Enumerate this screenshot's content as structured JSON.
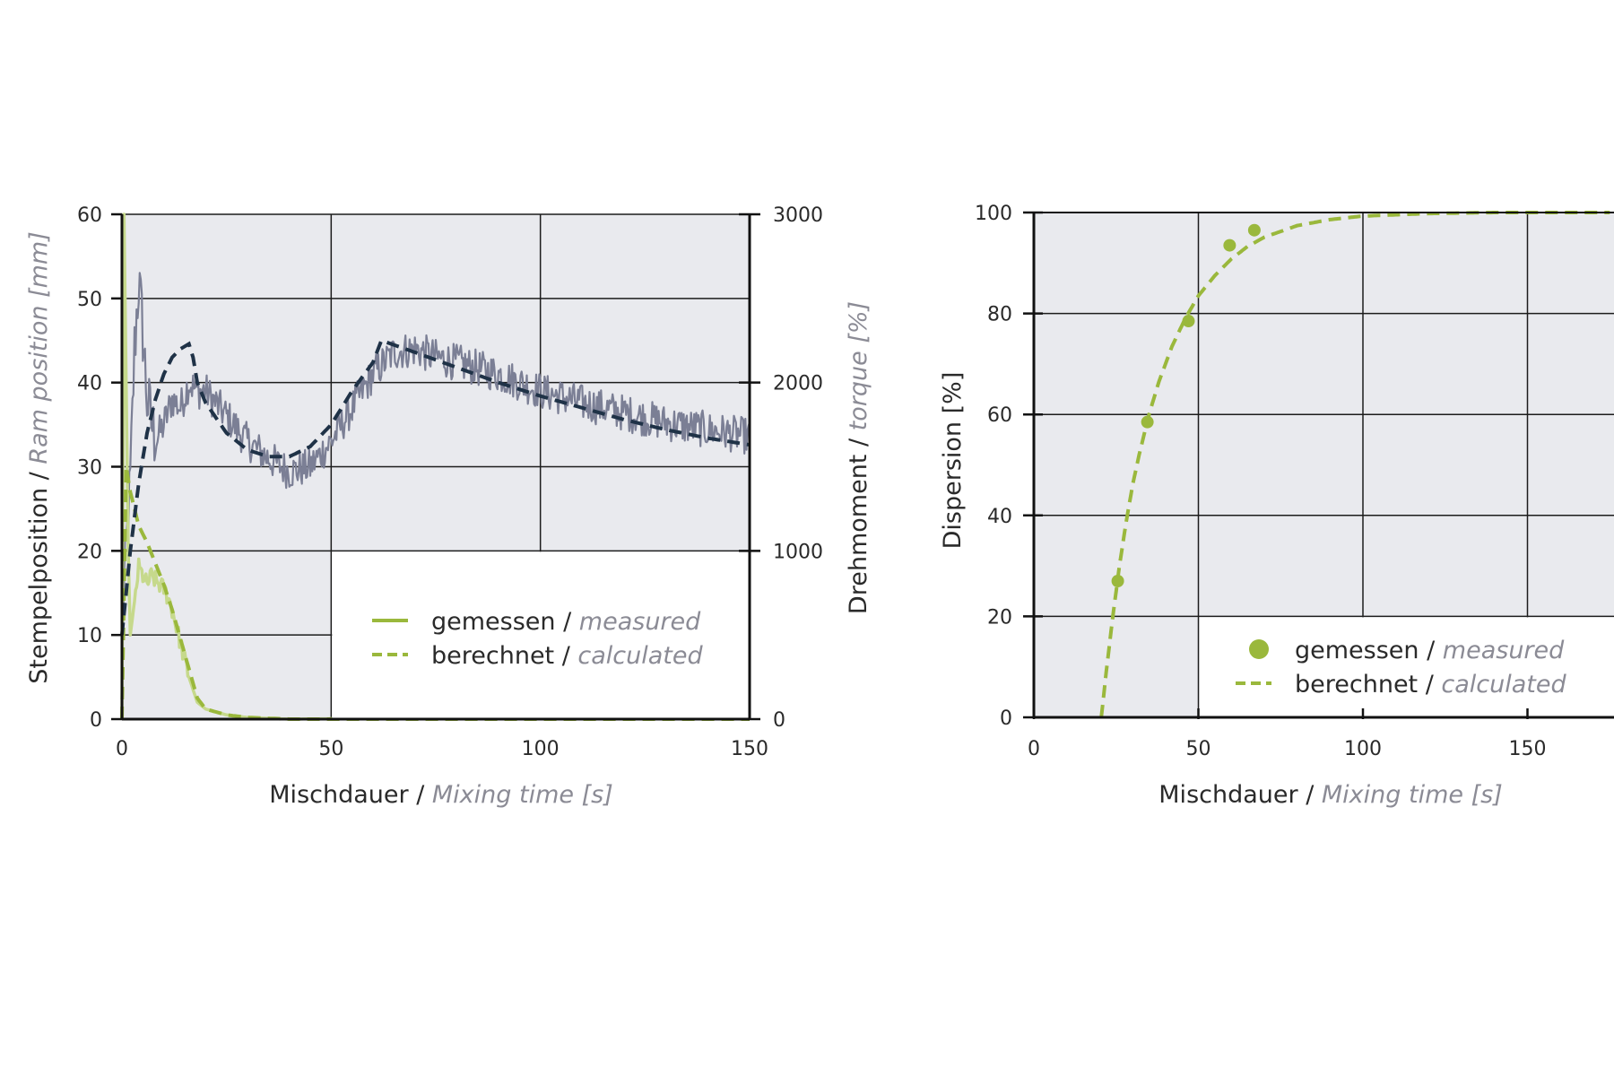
{
  "colors": {
    "plot_bg": "#e9eaee",
    "grid": "#1c1c1c",
    "torque_measured": "#7b7f95",
    "torque_calculated": "#1f3247",
    "ram_measured": "#c6d98c",
    "ram_calculated": "#9ab83c",
    "dispersion": "#9ab83c",
    "axis_label_sub": "#8b8b95"
  },
  "chart_data": [
    {
      "type": "line",
      "xlabel_main": "Mischdauer",
      "xlabel_sub": "Mixing time",
      "xlabel_unit": "[s]",
      "ylabel_left_main": "Stempelposition",
      "ylabel_left_sub": "Ram position",
      "ylabel_left_unit": "[mm]",
      "ylabel_right_main": "Drehmoment",
      "ylabel_right_sub": "torque",
      "ylabel_right_unit": "[%]",
      "xlim": [
        0,
        150
      ],
      "ylim_left": [
        0,
        60
      ],
      "ylim_right": [
        0,
        3000
      ],
      "xticks": [
        "0",
        "50",
        "100",
        "150"
      ],
      "yticks_left": [
        "0",
        "10",
        "20",
        "30",
        "40",
        "50",
        "60"
      ],
      "yticks_right": [
        "0",
        "1000",
        "2000",
        "3000"
      ],
      "grid": true,
      "legend": [
        {
          "main": "gemessen",
          "sub": "measured",
          "style": "solid"
        },
        {
          "main": "berechnet",
          "sub": "calculated",
          "style": "dashed"
        }
      ],
      "legend_position": "lower-right",
      "series": [
        {
          "axis": "left",
          "kind": "measured",
          "x": [
            0,
            0.5,
            1,
            1.5,
            2,
            3,
            4,
            5,
            6,
            7,
            8,
            9,
            10,
            11,
            12,
            13,
            14,
            16,
            18,
            20,
            25,
            30,
            40,
            60,
            80,
            100,
            120,
            150
          ],
          "y": [
            0,
            60,
            40,
            20,
            10,
            14,
            18,
            17,
            16,
            17,
            16.5,
            16,
            15.5,
            14.5,
            13,
            11,
            9,
            5,
            2,
            1.2,
            0.5,
            0.2,
            0,
            0.1,
            0.2,
            0.1,
            0.2,
            0
          ]
        },
        {
          "axis": "left",
          "kind": "calculated",
          "x": [
            0,
            1,
            2,
            4,
            6,
            8,
            10,
            12,
            14,
            16,
            18,
            20,
            25,
            30,
            40,
            60,
            100,
            150
          ],
          "y": [
            0,
            30,
            27,
            23,
            21,
            18.5,
            16,
            13,
            9.5,
            6,
            2.5,
            1.2,
            0.5,
            0.2,
            0,
            0,
            0,
            0
          ]
        },
        {
          "axis": "right",
          "kind": "measured",
          "x": [
            0,
            1,
            2,
            3,
            4,
            5,
            6,
            8,
            10,
            12,
            14,
            16,
            18,
            20,
            25,
            30,
            35,
            40,
            45,
            50,
            55,
            60,
            65,
            70,
            75,
            80,
            90,
            100,
            110,
            120,
            130,
            140,
            150
          ],
          "y": [
            500,
            1000,
            1400,
            2200,
            2600,
            2300,
            1900,
            1650,
            1750,
            1900,
            1850,
            2000,
            1950,
            1950,
            1800,
            1650,
            1550,
            1470,
            1500,
            1650,
            1850,
            2050,
            2180,
            2200,
            2150,
            2120,
            2050,
            1950,
            1880,
            1820,
            1760,
            1720,
            1680
          ]
        },
        {
          "axis": "right",
          "kind": "calculated",
          "x": [
            0,
            2,
            4,
            6,
            8,
            10,
            12,
            14,
            16,
            17,
            18,
            20,
            25,
            30,
            35,
            40,
            45,
            50,
            55,
            60,
            62,
            70,
            80,
            90,
            100,
            110,
            120,
            130,
            140,
            150
          ],
          "y": [
            500,
            1000,
            1400,
            1700,
            1900,
            2050,
            2150,
            2200,
            2230,
            2150,
            2000,
            1880,
            1700,
            1600,
            1560,
            1560,
            1620,
            1750,
            1950,
            2120,
            2250,
            2180,
            2090,
            2000,
            1920,
            1850,
            1780,
            1720,
            1670,
            1630
          ]
        }
      ]
    },
    {
      "type": "scatter",
      "xlabel_main": "Mischdauer",
      "xlabel_sub": "Mixing time",
      "xlabel_unit": "[s]",
      "ylabel_main": "Dispersion",
      "ylabel_unit": "[%]",
      "xlim": [
        0,
        175
      ],
      "ylim": [
        0,
        100
      ],
      "xticks": [
        "0",
        "50",
        "100",
        "150"
      ],
      "yticks": [
        "0",
        "20",
        "40",
        "60",
        "80",
        "100"
      ],
      "grid": true,
      "legend": [
        {
          "main": "gemessen",
          "sub": "measured",
          "style": "marker"
        },
        {
          "main": "berechnet",
          "sub": "calculated",
          "style": "dashed"
        }
      ],
      "legend_position": "lower-right",
      "series": [
        {
          "kind": "measured",
          "x": [
            25.5,
            34.5,
            47,
            59.5,
            67
          ],
          "y": [
            27,
            58.5,
            78.5,
            93.5,
            96.5
          ]
        },
        {
          "kind": "calculated",
          "x": [
            20.5,
            22,
            24,
            26,
            28,
            30,
            32,
            35,
            38,
            42,
            46,
            50,
            55,
            60,
            65,
            70,
            80,
            90,
            100,
            120,
            140,
            160,
            175
          ],
          "y": [
            0,
            9,
            20,
            30,
            38.5,
            46,
            52,
            60,
            66.5,
            73.5,
            79,
            83.5,
            87.5,
            90.8,
            93.3,
            95.1,
            97.4,
            98.6,
            99.3,
            99.8,
            100,
            100,
            100
          ]
        }
      ]
    }
  ]
}
